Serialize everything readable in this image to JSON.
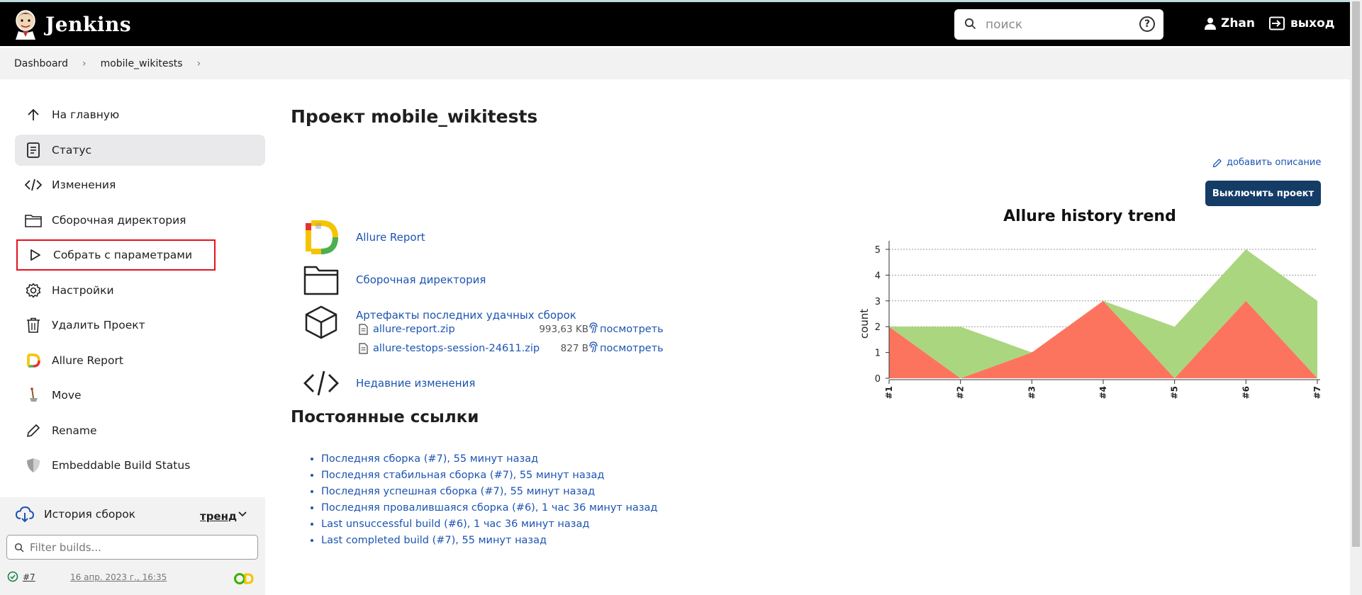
{
  "header": {
    "brand": "Jenkins",
    "search_placeholder": "поиск",
    "help": "?",
    "user": "Zhan",
    "logout": "выход"
  },
  "breadcrumb": [
    "Dashboard",
    "mobile_wikitests"
  ],
  "sidebar": {
    "items": [
      {
        "label": "На главную",
        "icon": "arrow-up-icon"
      },
      {
        "label": "Статус",
        "icon": "document-icon"
      },
      {
        "label": "Изменения",
        "icon": "code-icon"
      },
      {
        "label": "Сборочная директория",
        "icon": "folder-icon"
      },
      {
        "label": "Собрать с параметрами",
        "icon": "play-icon"
      },
      {
        "label": "Настройки",
        "icon": "gear-icon"
      },
      {
        "label": "Удалить Проект",
        "icon": "trash-icon"
      },
      {
        "label": "Allure Report",
        "icon": "allure-icon"
      },
      {
        "label": "Move",
        "icon": "move-icon"
      },
      {
        "label": "Rename",
        "icon": "pencil-icon"
      },
      {
        "label": "Embeddable Build Status",
        "icon": "shield-icon"
      }
    ],
    "history": {
      "title": "История сборок",
      "trend_label": "тренд",
      "filter_placeholder": "Filter builds...",
      "builds": [
        {
          "number": "#7",
          "date": "16 апр. 2023 г., 16:35"
        }
      ]
    }
  },
  "main": {
    "title": "Проект mobile_wikitests",
    "add_description": "добавить описание",
    "disable_button": "Выключить проект",
    "links": {
      "allure_report": "Allure Report",
      "workspace": "Сборочная директория",
      "artifacts_title": "Артефакты последних удачных сборок",
      "recent_changes": "Недавние изменения"
    },
    "artifacts": [
      {
        "name": "allure-report.zip",
        "size": "993,63 KB",
        "view": "посмотреть"
      },
      {
        "name": "allure-testops-session-24611.zip",
        "size": "827 B",
        "view": "посмотреть"
      }
    ],
    "permalinks_title": "Постоянные ссылки",
    "permalinks": [
      "Последняя сборка (#7), 55 минут назад",
      "Последняя стабильная сборка (#7), 55 минут назад",
      "Последняя успешная сборка (#7), 55 минут назад",
      "Последняя провалившаяся сборка (#6), 1 час 36 минут назад",
      "Last unsuccessful build (#6), 1 час 36 минут назад",
      "Last completed build (#7), 55 минут назад"
    ]
  },
  "chart_data": {
    "type": "area",
    "title": "Allure history trend",
    "ylabel": "count",
    "xlabel": "",
    "categories": [
      "#1",
      "#2",
      "#3",
      "#4",
      "#5",
      "#6",
      "#7"
    ],
    "ylim": [
      0,
      5
    ],
    "yticks": [
      0,
      1,
      2,
      3,
      4,
      5
    ],
    "grid": true,
    "stacked": true,
    "series": [
      {
        "name": "",
        "color": "#fd745e",
        "values": [
          2,
          0,
          1,
          3,
          0,
          3,
          0
        ]
      },
      {
        "name": "",
        "color": "#aad67f",
        "values": [
          0,
          2,
          0,
          0,
          2,
          2,
          3
        ]
      }
    ]
  },
  "colors": {
    "link": "#1c54b2",
    "button": "#153c67",
    "highlight": "#e3131e"
  }
}
